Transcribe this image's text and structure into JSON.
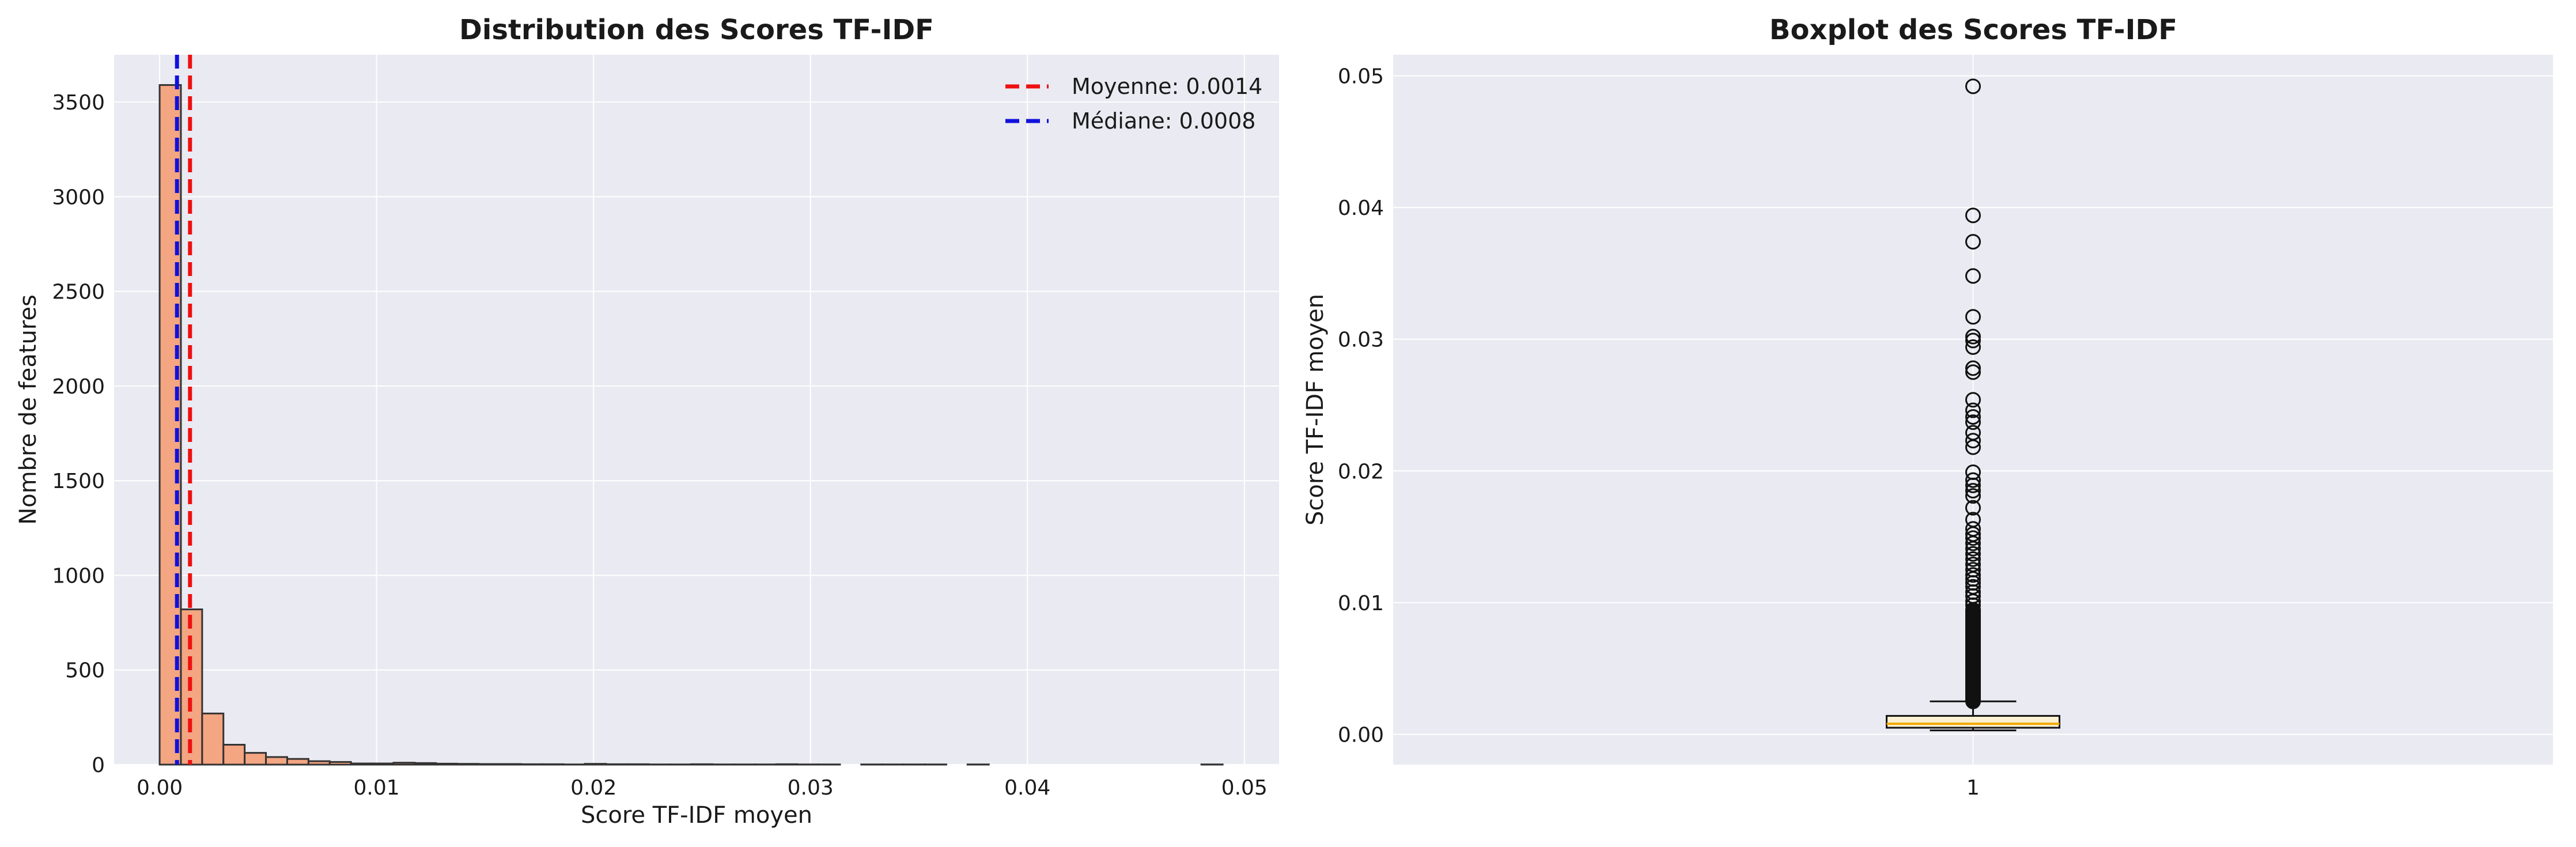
{
  "chart_data": [
    {
      "type": "bar",
      "subtype": "histogram",
      "title": "Distribution des Scores TF-IDF",
      "xlabel": "Score TF-IDF moyen",
      "ylabel": "Nombre de features",
      "xlim": [
        -0.0021,
        0.0516
      ],
      "ylim": [
        0,
        3750
      ],
      "xticks": [
        0.0,
        0.01,
        0.02,
        0.03,
        0.04,
        0.05
      ],
      "xtick_labels": [
        "0.00",
        "0.01",
        "0.02",
        "0.03",
        "0.04",
        "0.05"
      ],
      "yticks": [
        0,
        500,
        1000,
        1500,
        2000,
        2500,
        3000,
        3500
      ],
      "ytick_labels": [
        "0",
        "500",
        "1000",
        "1500",
        "2000",
        "2500",
        "3000",
        "3500"
      ],
      "bin_start": 0.0,
      "bin_width": 0.00098,
      "counts": [
        3590,
        820,
        270,
        105,
        62,
        40,
        30,
        18,
        14,
        6,
        6,
        10,
        8,
        5,
        4,
        3,
        3,
        2,
        2,
        1,
        4,
        2,
        2,
        1,
        1,
        2,
        1,
        1,
        1,
        2,
        1,
        1,
        0,
        1,
        1,
        1,
        1,
        0,
        1,
        0,
        0,
        0,
        0,
        0,
        0,
        0,
        0,
        0,
        0,
        1
      ],
      "bar_color": "#f4a582",
      "edge_color": "#333333",
      "grid": true,
      "legend_position": "top-right",
      "lines": [
        {
          "label": "Moyenne: 0.0014",
          "x": 0.0014,
          "color": "#ee1111"
        },
        {
          "label": "Médiane: 0.0008",
          "x": 0.0008,
          "color": "#1111dd"
        }
      ]
    },
    {
      "type": "box",
      "title": "Boxplot des Scores TF-IDF",
      "xlabel": "",
      "ylabel": "Score TF-IDF moyen",
      "ylim": [
        -0.0023,
        0.0516
      ],
      "yticks": [
        0.0,
        0.01,
        0.02,
        0.03,
        0.04,
        0.05
      ],
      "ytick_labels": [
        "0.00",
        "0.01",
        "0.02",
        "0.03",
        "0.04",
        "0.05"
      ],
      "xtick_labels": [
        "1"
      ],
      "grid": true,
      "box": {
        "whisker_low": 0.0003,
        "q1": 0.0005,
        "median": 0.0008,
        "q3": 0.0014,
        "whisker_high": 0.0025
      },
      "box_fill": "#faf0d2",
      "median_color": "#f2a900",
      "outliers_dense_range": [
        0.0025,
        0.0095
      ],
      "outliers": [
        0.0098,
        0.0101,
        0.0105,
        0.0108,
        0.0112,
        0.0115,
        0.0118,
        0.0121,
        0.0125,
        0.0129,
        0.0133,
        0.0137,
        0.0141,
        0.0145,
        0.0149,
        0.0152,
        0.0156,
        0.0163,
        0.0172,
        0.0181,
        0.0185,
        0.0189,
        0.0193,
        0.0199,
        0.0218,
        0.0223,
        0.0229,
        0.0237,
        0.0241,
        0.0246,
        0.0254,
        0.0275,
        0.0278,
        0.0294,
        0.0299,
        0.0302,
        0.0317,
        0.0348,
        0.0374,
        0.0394,
        0.0492
      ]
    }
  ]
}
